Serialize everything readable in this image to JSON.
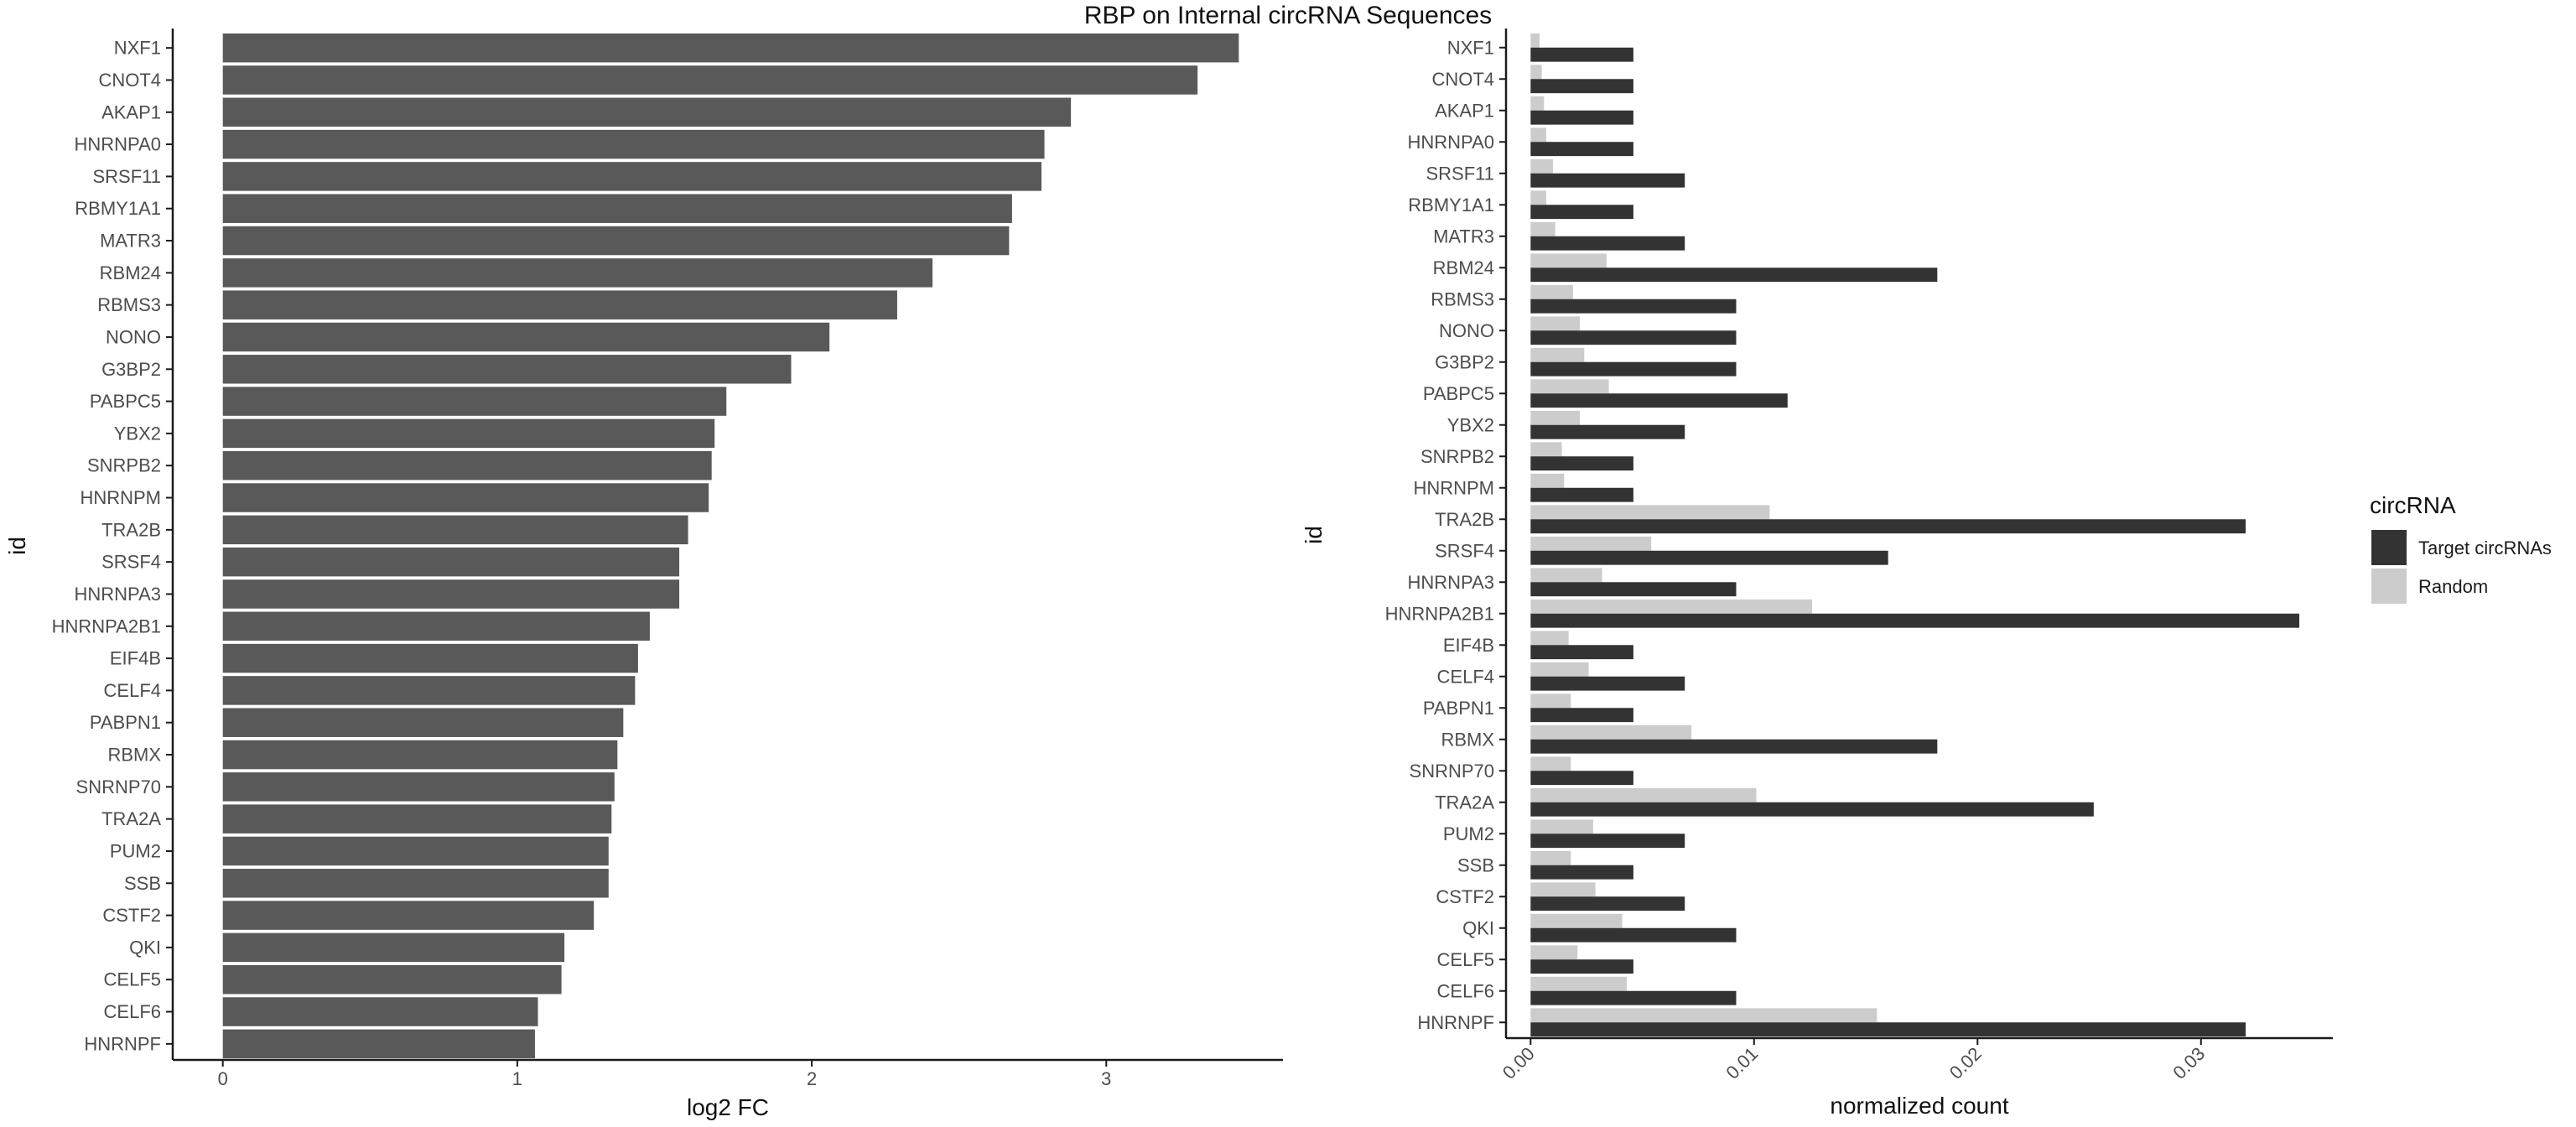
{
  "title": "RBP on Internal circRNA Sequences",
  "colors": {
    "bar_left": "#595959",
    "target": "#333333",
    "random": "#cccccc",
    "axis": "#1a1a1a",
    "tick_text": "#4d4d4d"
  },
  "chart_data": [
    {
      "type": "bar",
      "orientation": "horizontal",
      "xlabel": "log2 FC",
      "ylabel": "id",
      "xlim": [
        -0.17,
        3.6
      ],
      "xticks": [
        0,
        1,
        2,
        3
      ],
      "xtick_labels": [
        "0",
        "1",
        "2",
        "3"
      ],
      "grid": false,
      "categories": [
        "NXF1",
        "CNOT4",
        "AKAP1",
        "HNRNPA0",
        "SRSF11",
        "RBMY1A1",
        "MATR3",
        "RBM24",
        "RBMS3",
        "NONO",
        "G3BP2",
        "PABPC5",
        "YBX2",
        "SNRPB2",
        "HNRNPM",
        "TRA2B",
        "SRSF4",
        "HNRNPA3",
        "HNRNPA2B1",
        "EIF4B",
        "CELF4",
        "PABPN1",
        "RBMX",
        "SNRNP70",
        "TRA2A",
        "PUM2",
        "SSB",
        "CSTF2",
        "QKI",
        "CELF5",
        "CELF6",
        "HNRNPF"
      ],
      "values": [
        3.45,
        3.31,
        2.88,
        2.79,
        2.78,
        2.68,
        2.67,
        2.41,
        2.29,
        2.06,
        1.93,
        1.71,
        1.67,
        1.66,
        1.65,
        1.58,
        1.55,
        1.55,
        1.45,
        1.41,
        1.4,
        1.36,
        1.34,
        1.33,
        1.32,
        1.31,
        1.31,
        1.26,
        1.16,
        1.15,
        1.07,
        1.06
      ]
    },
    {
      "type": "bar",
      "orientation": "horizontal",
      "grouped": true,
      "xlabel": "normalized count",
      "ylabel": "id",
      "xlim": [
        -0.0011,
        0.0359
      ],
      "xticks": [
        0,
        0.01,
        0.02,
        0.03
      ],
      "xtick_labels": [
        "0.00",
        "0.01",
        "0.02",
        "0.03"
      ],
      "grid": false,
      "legend": {
        "title": "circRNA",
        "position": "right"
      },
      "categories": [
        "NXF1",
        "CNOT4",
        "AKAP1",
        "HNRNPA0",
        "SRSF11",
        "RBMY1A1",
        "MATR3",
        "RBM24",
        "RBMS3",
        "NONO",
        "G3BP2",
        "PABPC5",
        "YBX2",
        "SNRPB2",
        "HNRNPM",
        "TRA2B",
        "SRSF4",
        "HNRNPA3",
        "HNRNPA2B1",
        "EIF4B",
        "CELF4",
        "PABPN1",
        "RBMX",
        "SNRNP70",
        "TRA2A",
        "PUM2",
        "SSB",
        "CSTF2",
        "QKI",
        "CELF5",
        "CELF6",
        "HNRNPF"
      ],
      "series": [
        {
          "name": "Target circRNAs",
          "color": "#333333",
          "values": [
            0.0046,
            0.0046,
            0.0046,
            0.0046,
            0.0069,
            0.0046,
            0.0069,
            0.0182,
            0.0092,
            0.0092,
            0.0092,
            0.0115,
            0.0069,
            0.0046,
            0.0046,
            0.032,
            0.016,
            0.0092,
            0.0344,
            0.0046,
            0.0069,
            0.0046,
            0.0182,
            0.0046,
            0.0252,
            0.0069,
            0.0046,
            0.0069,
            0.0092,
            0.0046,
            0.0092,
            0.032
          ]
        },
        {
          "name": "Random",
          "color": "#cccccc",
          "values": [
            0.0004,
            0.0005,
            0.0006,
            0.0007,
            0.001,
            0.0007,
            0.0011,
            0.0034,
            0.0019,
            0.0022,
            0.0024,
            0.0035,
            0.0022,
            0.0014,
            0.0015,
            0.0107,
            0.0054,
            0.0032,
            0.0126,
            0.0017,
            0.0026,
            0.0018,
            0.0072,
            0.0018,
            0.0101,
            0.0028,
            0.0018,
            0.0029,
            0.0041,
            0.0021,
            0.0043,
            0.0155
          ]
        }
      ]
    }
  ]
}
